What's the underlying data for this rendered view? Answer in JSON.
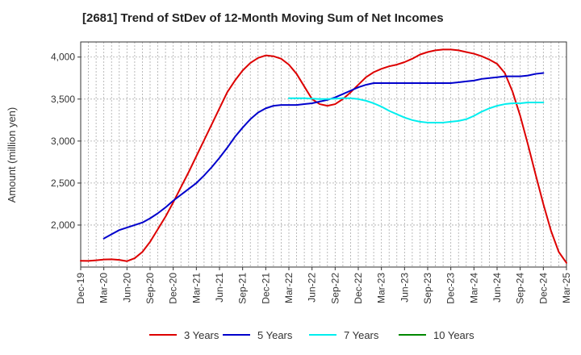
{
  "chart_data": {
    "type": "line",
    "title": "[2681]  Trend of StDev of 12-Month Moving Sum of Net Incomes",
    "xlabel": "",
    "ylabel": "Amount (million yen)",
    "ylim": [
      1500,
      4180
    ],
    "grid": true,
    "legend_position": "bottom",
    "x_ticks": [
      "Dec-19",
      "Mar-20",
      "Jun-20",
      "Sep-20",
      "Dec-20",
      "Mar-21",
      "Jun-21",
      "Sep-21",
      "Dec-21",
      "Mar-22",
      "Jun-22",
      "Sep-22",
      "Dec-22",
      "Mar-23",
      "Jun-23",
      "Sep-23",
      "Dec-23",
      "Mar-24",
      "Jun-24",
      "Sep-24",
      "Dec-24",
      "Mar-25"
    ],
    "y_ticks": [
      2000,
      2500,
      3000,
      3500,
      4000
    ],
    "y_tick_labels": [
      "2,000",
      "2,500",
      "3,000",
      "3,500",
      "4,000"
    ],
    "series": [
      {
        "name": "3 Years",
        "color": "#dd0000",
        "start": "Dec-19",
        "values": [
          1575,
          1573,
          1580,
          1590,
          1592,
          1585,
          1570,
          1605,
          1680,
          1800,
          1950,
          2100,
          2270,
          2450,
          2630,
          2820,
          3010,
          3200,
          3390,
          3580,
          3720,
          3840,
          3930,
          3990,
          4020,
          4010,
          3980,
          3910,
          3800,
          3650,
          3500,
          3440,
          3420,
          3440,
          3500,
          3580,
          3670,
          3760,
          3820,
          3860,
          3890,
          3910,
          3940,
          3980,
          4030,
          4060,
          4080,
          4090,
          4090,
          4080,
          4060,
          4040,
          4010,
          3970,
          3920,
          3810,
          3590,
          3300,
          2960,
          2600,
          2250,
          1930,
          1680,
          1550
        ]
      },
      {
        "name": "5 Years",
        "color": "#0000cc",
        "start": "Mar-20",
        "values": [
          1840,
          1890,
          1940,
          1970,
          2000,
          2030,
          2080,
          2140,
          2210,
          2290,
          2360,
          2430,
          2500,
          2590,
          2690,
          2800,
          2920,
          3050,
          3160,
          3260,
          3340,
          3390,
          3420,
          3430,
          3430,
          3430,
          3440,
          3450,
          3470,
          3490,
          3520,
          3560,
          3600,
          3640,
          3670,
          3690,
          3690,
          3690,
          3690,
          3690,
          3690,
          3690,
          3690,
          3690,
          3690,
          3690,
          3700,
          3710,
          3720,
          3740,
          3750,
          3760,
          3770,
          3770,
          3770,
          3780,
          3800,
          3810
        ]
      },
      {
        "name": "7 Years",
        "color": "#00eeee",
        "start": "Mar-22",
        "values": [
          3510,
          3510,
          3510,
          3505,
          3500,
          3500,
          3505,
          3510,
          3510,
          3500,
          3480,
          3450,
          3410,
          3360,
          3320,
          3280,
          3250,
          3230,
          3220,
          3220,
          3220,
          3230,
          3240,
          3260,
          3300,
          3350,
          3390,
          3420,
          3440,
          3450,
          3450,
          3460,
          3460,
          3460
        ]
      },
      {
        "name": "10 Years",
        "color": "#008800",
        "start": "Dec-24",
        "values": []
      }
    ]
  }
}
